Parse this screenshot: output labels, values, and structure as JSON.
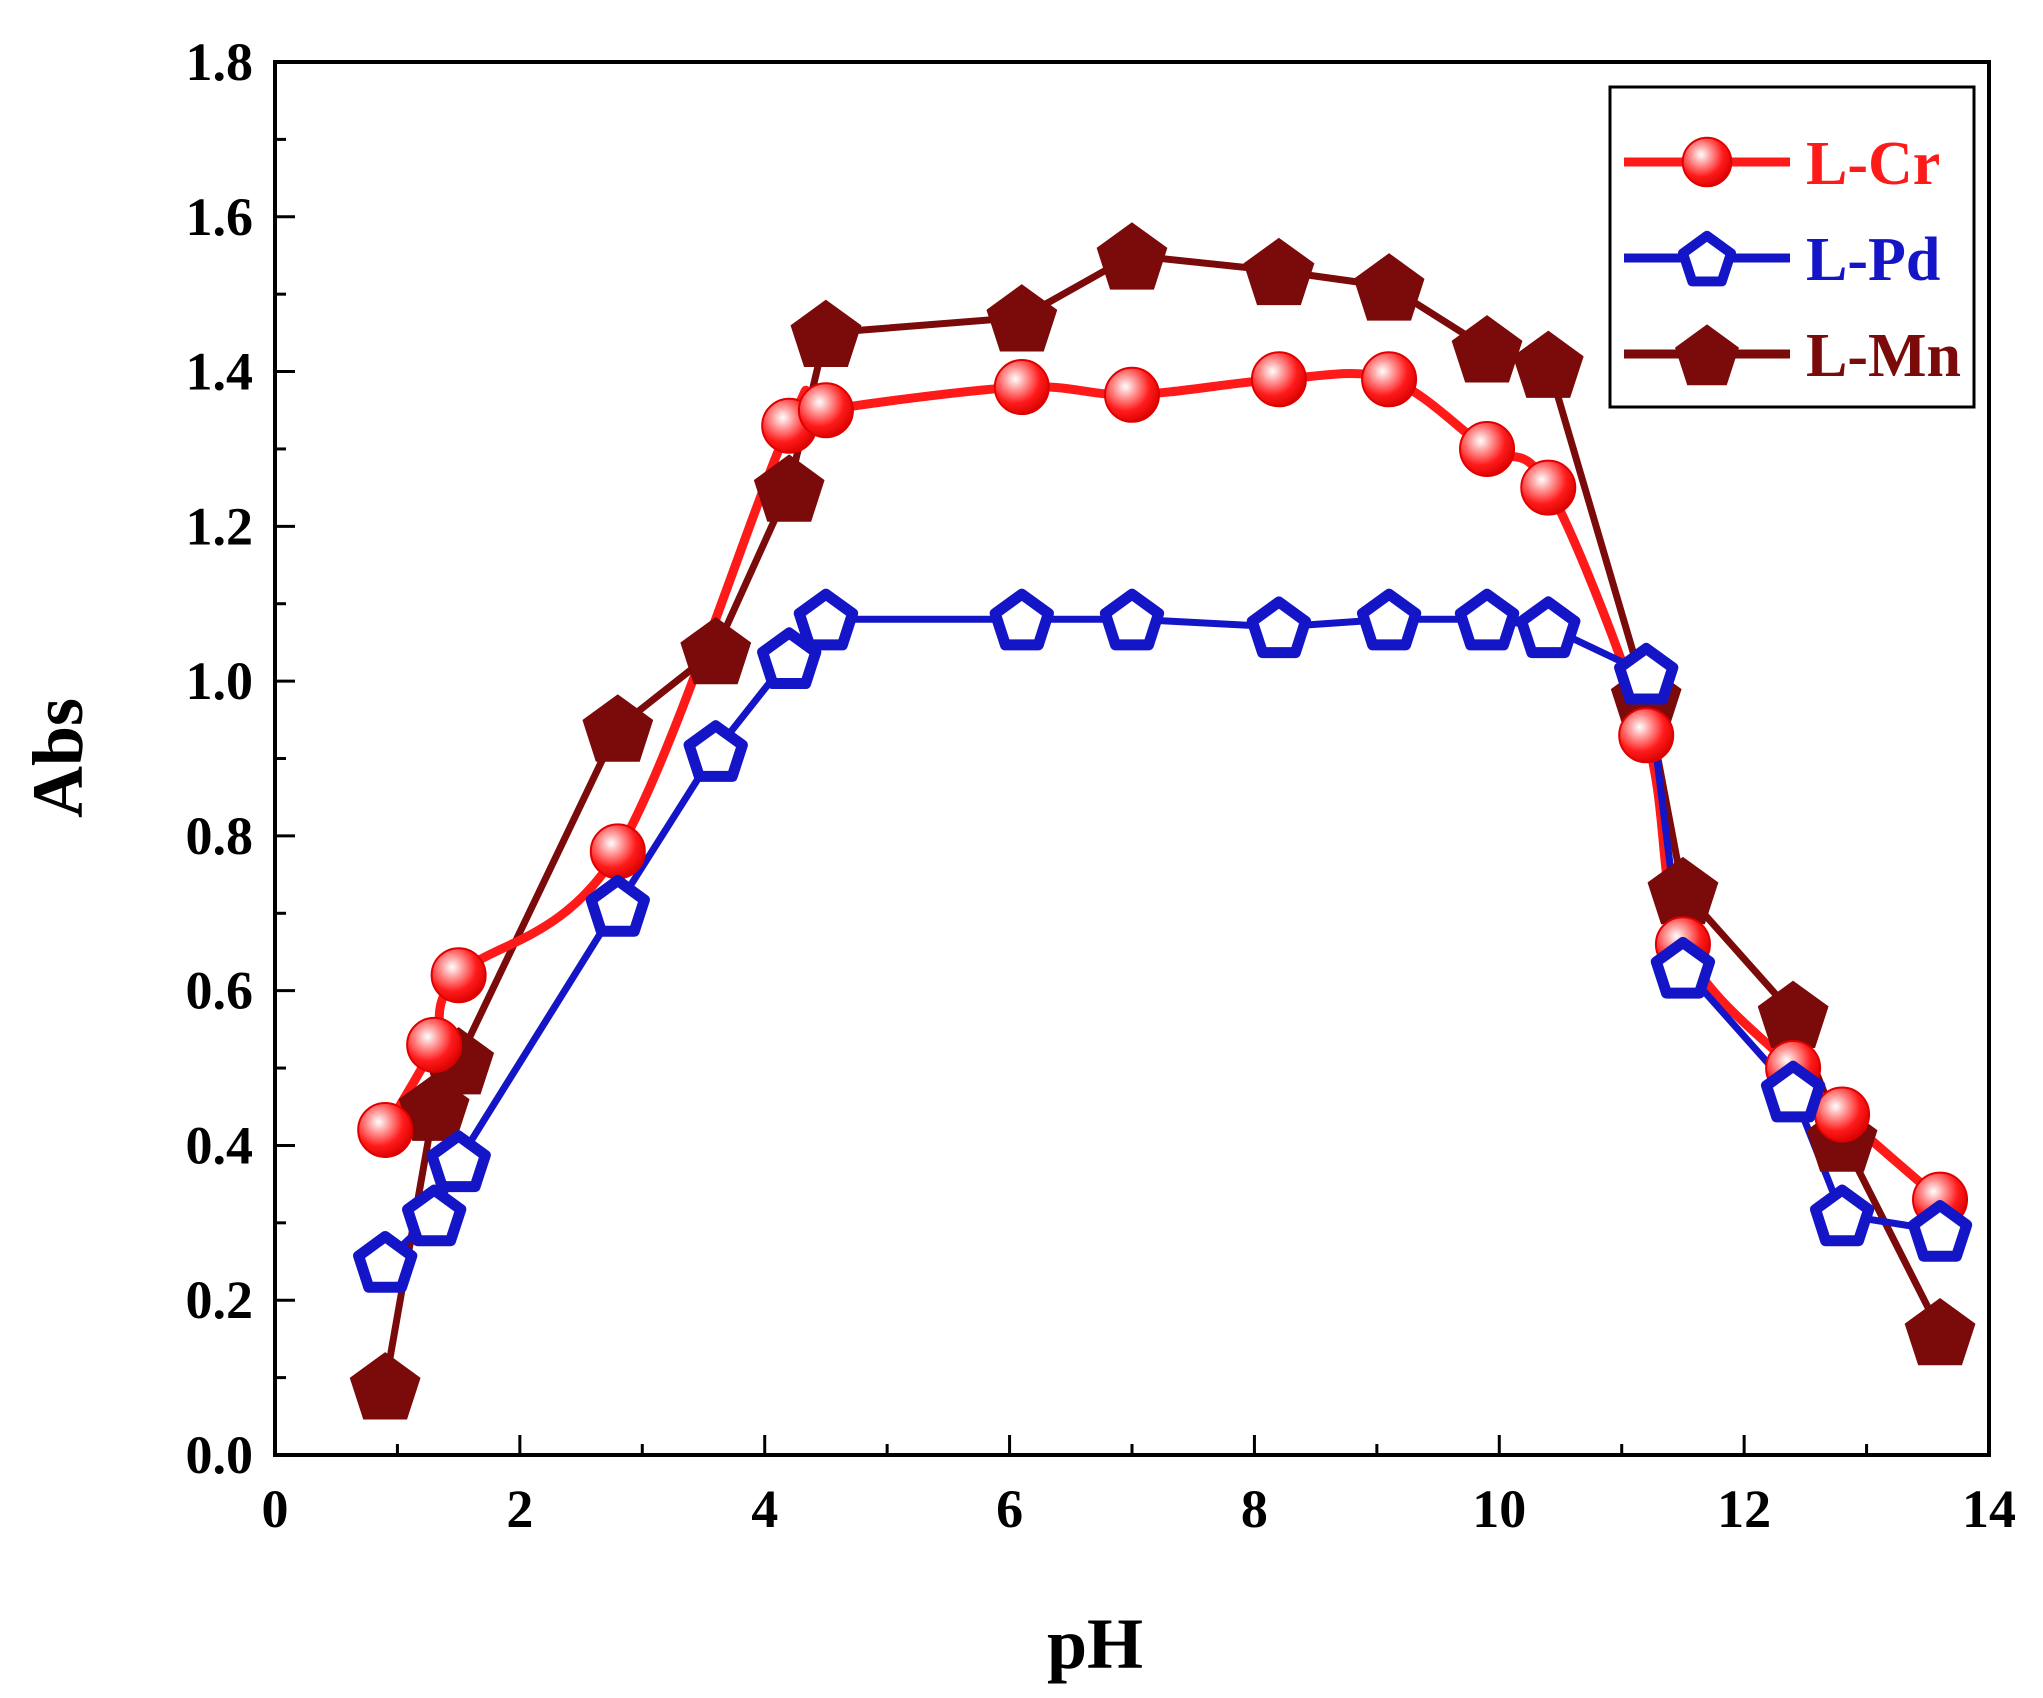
{
  "chart_data": {
    "type": "line",
    "title": "",
    "xlabel": "pH",
    "ylabel": "Abs",
    "xlim": [
      0,
      14
    ],
    "ylim": [
      0.0,
      1.8
    ],
    "xticks": [
      0,
      2,
      4,
      6,
      8,
      10,
      12,
      14
    ],
    "yticks": [
      0.0,
      0.2,
      0.4,
      0.6,
      0.8,
      1.0,
      1.2,
      1.4,
      1.6,
      1.8
    ],
    "ytick_labels": [
      "0.0",
      "0.2",
      "0.4",
      "0.6",
      "0.8",
      "1.0",
      "1.2",
      "1.4",
      "1.6",
      "1.8"
    ],
    "legend_position": "top-right",
    "grid": false,
    "series": [
      {
        "name": "L-Cr",
        "color": "#ff1a1a",
        "marker": "sphere",
        "line": "smooth",
        "x": [
          0.9,
          1.3,
          1.5,
          2.8,
          4.2,
          4.5,
          6.1,
          7.0,
          8.2,
          9.1,
          9.9,
          10.4,
          11.2,
          11.5,
          12.4,
          12.8,
          13.6
        ],
        "y": [
          0.42,
          0.53,
          0.62,
          0.78,
          1.33,
          1.35,
          1.38,
          1.37,
          1.39,
          1.39,
          1.3,
          1.25,
          0.93,
          0.66,
          0.5,
          0.44,
          0.33
        ]
      },
      {
        "name": "L-Pd",
        "color": "#1515c8",
        "marker": "open-pentagon",
        "line": "straight",
        "x": [
          0.9,
          1.3,
          1.5,
          2.8,
          3.6,
          4.2,
          4.5,
          6.1,
          7.0,
          8.2,
          9.1,
          9.9,
          10.4,
          11.2,
          11.5,
          12.4,
          12.8,
          13.6
        ],
        "y": [
          0.25,
          0.31,
          0.38,
          0.71,
          0.91,
          1.03,
          1.08,
          1.08,
          1.08,
          1.07,
          1.08,
          1.08,
          1.07,
          1.01,
          0.63,
          0.47,
          0.31,
          0.29
        ]
      },
      {
        "name": "L-Mn",
        "color": "#7b0a0a",
        "marker": "filled-pentagon",
        "line": "straight",
        "x": [
          0.9,
          1.3,
          1.5,
          2.8,
          3.6,
          4.2,
          4.5,
          6.1,
          7.0,
          8.2,
          9.1,
          9.9,
          10.4,
          11.2,
          11.5,
          12.4,
          12.8,
          13.6
        ],
        "y": [
          0.09,
          0.45,
          0.51,
          0.94,
          1.04,
          1.25,
          1.45,
          1.47,
          1.55,
          1.53,
          1.51,
          1.43,
          1.41,
          0.98,
          0.73,
          0.57,
          0.41,
          0.16
        ]
      }
    ]
  }
}
